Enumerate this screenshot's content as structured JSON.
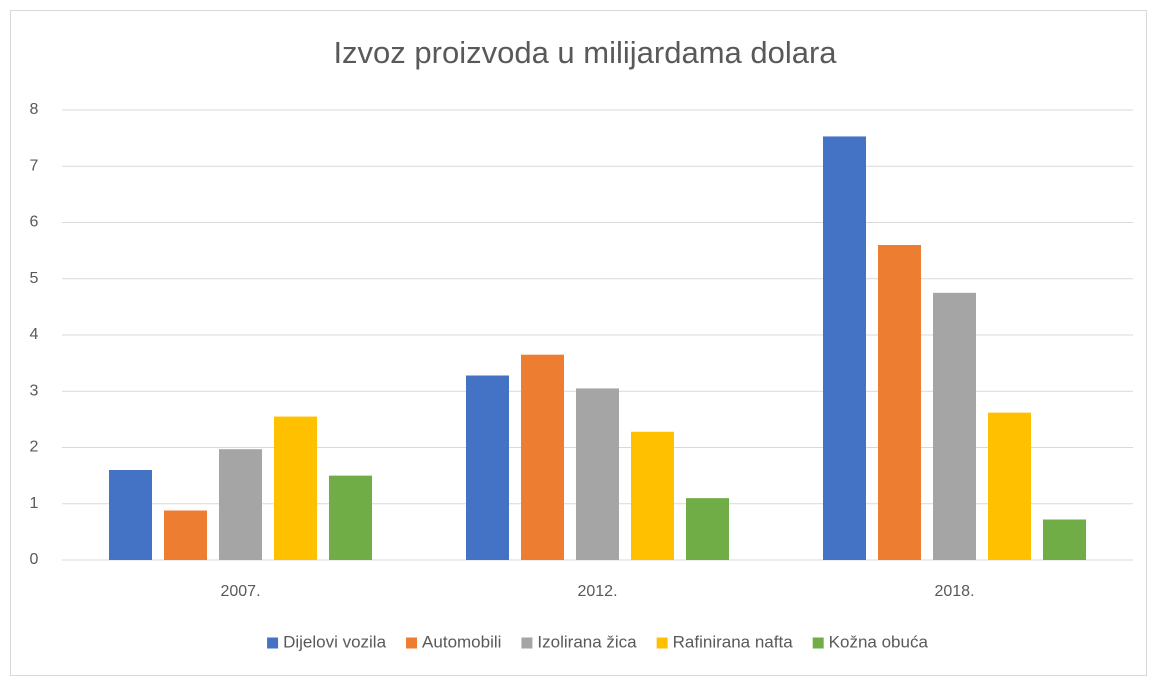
{
  "chart_data": {
    "type": "bar",
    "title": "Izvoz proizvoda u milijardama dolara",
    "categories": [
      "2007.",
      "2012.",
      "2018."
    ],
    "series": [
      {
        "name": "Dijelovi vozila",
        "color": "#4472c4",
        "values": [
          1.6,
          3.28,
          7.53
        ]
      },
      {
        "name": "Automobili",
        "color": "#ed7d31",
        "values": [
          0.88,
          3.65,
          5.6
        ]
      },
      {
        "name": "Izolirana žica",
        "color": "#a5a5a5",
        "values": [
          1.97,
          3.05,
          4.75
        ]
      },
      {
        "name": "Rafinirana nafta",
        "color": "#ffc000",
        "values": [
          2.55,
          2.28,
          2.62
        ]
      },
      {
        "name": "Kožna obuća",
        "color": "#70ad47",
        "values": [
          1.5,
          1.1,
          0.72
        ]
      }
    ],
    "ylim": [
      0,
      8
    ],
    "yticks": [
      0,
      1,
      2,
      3,
      4,
      5,
      6,
      7,
      8
    ],
    "grid": true,
    "legend": "bottom"
  }
}
